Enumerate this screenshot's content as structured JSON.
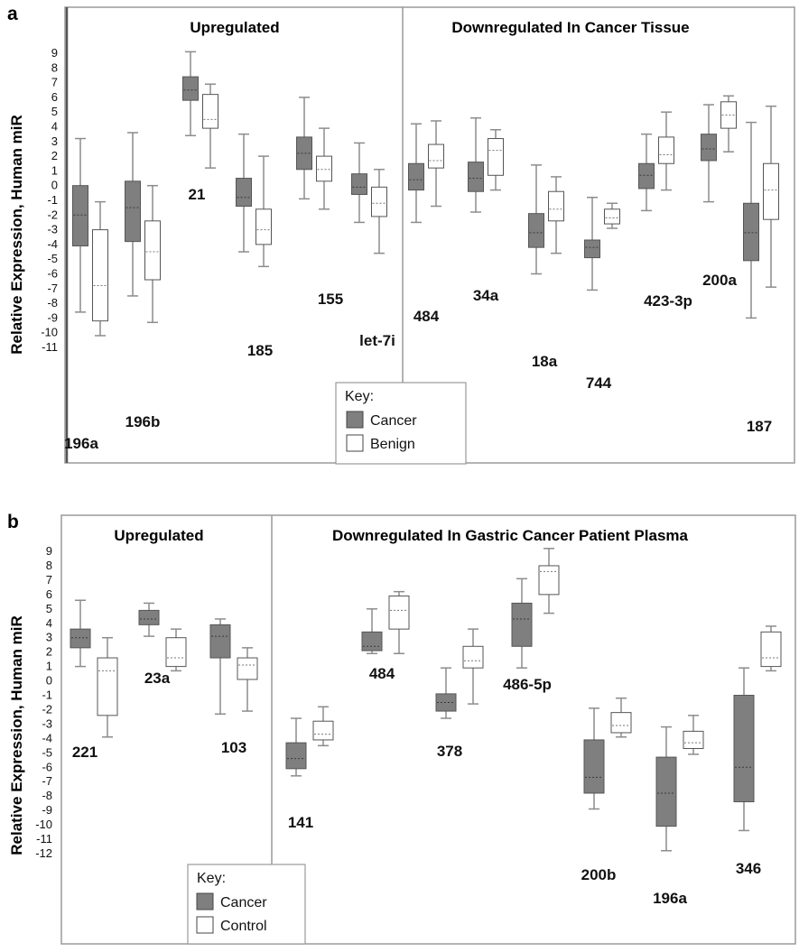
{
  "colors": {
    "cancer": "#7f7f7f",
    "benign": "#ffffff",
    "whisker": "#8c8c8c",
    "frame": "#9a9a9a"
  },
  "chart_data": [
    {
      "type": "boxplot",
      "panel": "a",
      "ylabel": "Relative Expression, Human miR",
      "yticks": [
        "9",
        "8",
        "7",
        "6",
        "5",
        "4",
        "3",
        "2",
        "1",
        "0",
        "-1",
        "-2",
        "-3",
        "-4",
        "-5",
        "-6",
        "-7",
        "-8",
        "-9",
        "-10",
        "-11"
      ],
      "ylim": [
        -11,
        9
      ],
      "sections": [
        "Upregulated",
        "Downregulated In Cancer Tissue"
      ],
      "legend": {
        "title": "Key:",
        "items": [
          "Cancer",
          "Benign"
        ]
      },
      "categories": [
        "196a",
        "196b",
        "21",
        "185",
        "155",
        "let-7i",
        "484",
        "34a",
        "18a",
        "744",
        "423-3p",
        "200a",
        "187"
      ],
      "series": [
        {
          "name": "Cancer",
          "boxes": [
            {
              "min": -8.6,
              "q1": -4.1,
              "median": -2.0,
              "q3": 0.0,
              "max": 3.2
            },
            {
              "min": -7.5,
              "q1": -3.8,
              "median": -1.5,
              "q3": 0.3,
              "max": 3.6
            },
            {
              "min": 3.4,
              "q1": 5.8,
              "median": 6.5,
              "q3": 7.4,
              "max": 9.1
            },
            {
              "min": -4.5,
              "q1": -1.4,
              "median": -0.8,
              "q3": 0.5,
              "max": 3.5
            },
            {
              "min": -0.9,
              "q1": 1.1,
              "median": 2.2,
              "q3": 3.3,
              "max": 6.0
            },
            {
              "min": -2.5,
              "q1": -0.6,
              "median": -0.1,
              "q3": 0.8,
              "max": 2.9
            },
            {
              "min": -2.5,
              "q1": -0.3,
              "median": 0.4,
              "q3": 1.5,
              "max": 4.2
            },
            {
              "min": -1.8,
              "q1": -0.4,
              "median": 0.5,
              "q3": 1.6,
              "max": 4.6
            },
            {
              "min": -6.0,
              "q1": -4.2,
              "median": -3.2,
              "q3": -1.9,
              "max": 1.4
            },
            {
              "min": -7.1,
              "q1": -4.9,
              "median": -4.2,
              "q3": -3.7,
              "max": -0.8
            },
            {
              "min": -1.7,
              "q1": -0.2,
              "median": 0.7,
              "q3": 1.5,
              "max": 3.5
            },
            {
              "min": -1.1,
              "q1": 1.7,
              "median": 2.5,
              "q3": 3.5,
              "max": 5.5
            },
            {
              "min": -9.0,
              "q1": -5.1,
              "median": -3.2,
              "q3": -1.2,
              "max": 4.3
            }
          ]
        },
        {
          "name": "Benign",
          "boxes": [
            {
              "min": -10.2,
              "q1": -9.2,
              "median": -6.8,
              "q3": -3.0,
              "max": -1.1
            },
            {
              "min": -9.3,
              "q1": -6.4,
              "median": -4.5,
              "q3": -2.4,
              "max": 0.0
            },
            {
              "min": 1.2,
              "q1": 3.9,
              "median": 4.5,
              "q3": 6.2,
              "max": 6.9
            },
            {
              "min": -5.5,
              "q1": -4.0,
              "median": -3.0,
              "q3": -1.6,
              "max": 2.0
            },
            {
              "min": -1.6,
              "q1": 0.3,
              "median": 1.1,
              "q3": 2.0,
              "max": 3.9
            },
            {
              "min": -4.6,
              "q1": -2.1,
              "median": -1.2,
              "q3": -0.1,
              "max": 1.1
            },
            {
              "min": -1.4,
              "q1": 1.2,
              "median": 1.7,
              "q3": 2.8,
              "max": 4.4
            },
            {
              "min": -0.3,
              "q1": 0.7,
              "median": 2.4,
              "q3": 3.2,
              "max": 3.8
            },
            {
              "min": -4.6,
              "q1": -2.4,
              "median": -1.6,
              "q3": -0.4,
              "max": 0.6
            },
            {
              "min": -2.9,
              "q1": -2.6,
              "median": -2.2,
              "q3": -1.6,
              "max": -1.2
            },
            {
              "min": -0.3,
              "q1": 1.5,
              "median": 2.1,
              "q3": 3.3,
              "max": 5.0
            },
            {
              "min": 2.3,
              "q1": 3.9,
              "median": 4.8,
              "q3": 5.7,
              "max": 6.1
            },
            {
              "min": -6.9,
              "q1": -2.3,
              "median": -0.3,
              "q3": 1.5,
              "max": 5.4
            }
          ]
        }
      ]
    },
    {
      "type": "boxplot",
      "panel": "b",
      "ylabel": "Relative Expression, Human miR",
      "yticks": [
        "9",
        "8",
        "7",
        "6",
        "5",
        "4",
        "3",
        "2",
        "1",
        "0",
        "-1",
        "-2",
        "-3",
        "-4",
        "-5",
        "-6",
        "-7",
        "-8",
        "-9",
        "-10",
        "-11",
        "-12"
      ],
      "ylim": [
        -12,
        9
      ],
      "sections": [
        "Upregulated",
        "Downregulated In Gastric Cancer Patient Plasma"
      ],
      "legend": {
        "title": "Key:",
        "items": [
          "Cancer",
          "Control"
        ]
      },
      "categories": [
        "221",
        "23a",
        "103",
        "141",
        "484",
        "378",
        "486-5p",
        "200b",
        "196a",
        "346"
      ],
      "series": [
        {
          "name": "Cancer",
          "boxes": [
            {
              "min": 1.0,
              "q1": 2.3,
              "median": 3.0,
              "q3": 3.6,
              "max": 5.6
            },
            {
              "min": 3.1,
              "q1": 3.9,
              "median": 4.3,
              "q3": 4.9,
              "max": 5.4
            },
            {
              "min": -2.3,
              "q1": 1.6,
              "median": 3.1,
              "q3": 3.9,
              "max": 4.3
            },
            {
              "min": -6.6,
              "q1": -6.1,
              "median": -5.4,
              "q3": -4.3,
              "max": -2.6
            },
            {
              "min": 1.9,
              "q1": 2.1,
              "median": 2.4,
              "q3": 3.4,
              "max": 5.0
            },
            {
              "min": -2.6,
              "q1": -2.1,
              "median": -1.5,
              "q3": -0.9,
              "max": 0.9
            },
            {
              "min": 0.9,
              "q1": 2.4,
              "median": 4.3,
              "q3": 5.4,
              "max": 7.1
            },
            {
              "min": -8.9,
              "q1": -7.8,
              "median": -6.7,
              "q3": -4.1,
              "max": -1.9
            },
            {
              "min": -11.8,
              "q1": -10.1,
              "median": -7.8,
              "q3": -5.3,
              "max": -3.2
            },
            {
              "min": -10.4,
              "q1": -8.4,
              "median": -6.0,
              "q3": -1.0,
              "max": 0.9
            }
          ]
        },
        {
          "name": "Control",
          "boxes": [
            {
              "min": -3.9,
              "q1": -2.4,
              "median": 0.7,
              "q3": 1.6,
              "max": 3.0
            },
            {
              "min": 0.7,
              "q1": 1.0,
              "median": 1.6,
              "q3": 3.0,
              "max": 3.6
            },
            {
              "min": -2.1,
              "q1": 0.1,
              "median": 1.1,
              "q3": 1.6,
              "max": 2.3
            },
            {
              "min": -4.5,
              "q1": -4.1,
              "median": -3.7,
              "q3": -2.8,
              "max": -1.8
            },
            {
              "min": 1.9,
              "q1": 3.6,
              "median": 4.9,
              "q3": 5.9,
              "max": 6.2
            },
            {
              "min": -1.6,
              "q1": 0.9,
              "median": 1.4,
              "q3": 2.4,
              "max": 3.6
            },
            {
              "min": 4.7,
              "q1": 6.0,
              "median": 7.6,
              "q3": 8.0,
              "max": 9.2
            },
            {
              "min": -3.9,
              "q1": -3.6,
              "median": -3.1,
              "q3": -2.2,
              "max": -1.2
            },
            {
              "min": -5.1,
              "q1": -4.7,
              "median": -4.3,
              "q3": -3.5,
              "max": -2.4
            },
            {
              "min": 0.7,
              "q1": 1.0,
              "median": 1.6,
              "q3": 3.4,
              "max": 3.8
            }
          ]
        }
      ]
    }
  ]
}
